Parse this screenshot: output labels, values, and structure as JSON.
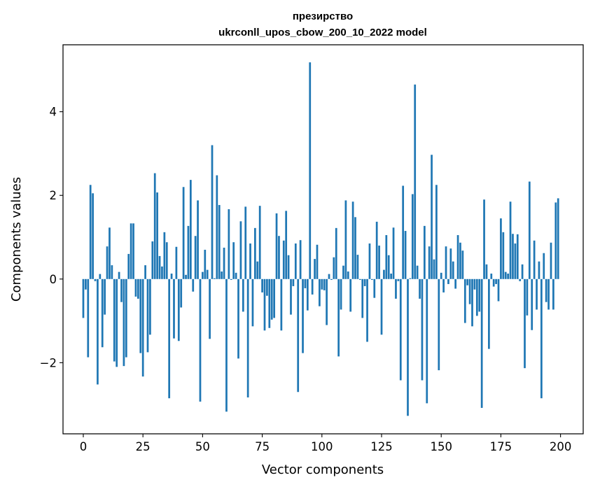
{
  "chart_data": {
    "type": "bar",
    "title": "презирство",
    "subtitle": "ukrconll_upos_cbow_200_10_2022 model",
    "xlabel": "Vector components",
    "ylabel": "Components values",
    "xlim": [
      -8.5,
      209.5
    ],
    "ylim": [
      -3.7,
      5.6
    ],
    "xticks": [
      0,
      25,
      50,
      75,
      100,
      125,
      150,
      175,
      200
    ],
    "xtick_labels": [
      "0",
      "25",
      "50",
      "75",
      "100",
      "125",
      "150",
      "175",
      "200"
    ],
    "yticks": [
      -2,
      0,
      2,
      4
    ],
    "ytick_labels": [
      "−2",
      "0",
      "2",
      "4"
    ],
    "grid": false,
    "bar_color": "#1f77b4",
    "x": [
      0,
      1,
      2,
      3,
      4,
      5,
      6,
      7,
      8,
      9,
      10,
      11,
      12,
      13,
      14,
      15,
      16,
      17,
      18,
      19,
      20,
      21,
      22,
      23,
      24,
      25,
      26,
      27,
      28,
      29,
      30,
      31,
      32,
      33,
      34,
      35,
      36,
      37,
      38,
      39,
      40,
      41,
      42,
      43,
      44,
      45,
      46,
      47,
      48,
      49,
      50,
      51,
      52,
      53,
      54,
      55,
      56,
      57,
      58,
      59,
      60,
      61,
      62,
      63,
      64,
      65,
      66,
      67,
      68,
      69,
      70,
      71,
      72,
      73,
      74,
      75,
      76,
      77,
      78,
      79,
      80,
      81,
      82,
      83,
      84,
      85,
      86,
      87,
      88,
      89,
      90,
      91,
      92,
      93,
      94,
      95,
      96,
      97,
      98,
      99,
      100,
      101,
      102,
      103,
      104,
      105,
      106,
      107,
      108,
      109,
      110,
      111,
      112,
      113,
      114,
      115,
      116,
      117,
      118,
      119,
      120,
      121,
      122,
      123,
      124,
      125,
      126,
      127,
      128,
      129,
      130,
      131,
      132,
      133,
      134,
      135,
      136,
      137,
      138,
      139,
      140,
      141,
      142,
      143,
      144,
      145,
      146,
      147,
      148,
      149,
      150,
      151,
      152,
      153,
      154,
      155,
      156,
      157,
      158,
      159,
      160,
      161,
      162,
      163,
      164,
      165,
      166,
      167,
      168,
      169,
      170,
      171,
      172,
      173,
      174,
      175,
      176,
      177,
      178,
      179,
      180,
      181,
      182,
      183,
      184,
      185,
      186,
      187,
      188,
      189,
      190,
      191,
      192,
      193,
      194,
      195,
      196,
      197,
      198,
      199
    ],
    "values": [
      -0.93,
      -0.25,
      -1.87,
      2.25,
      2.05,
      -0.05,
      -2.52,
      0.12,
      -1.63,
      -0.85,
      0.78,
      1.23,
      0.33,
      -1.97,
      -2.1,
      0.17,
      -0.55,
      -2.08,
      -1.87,
      0.6,
      1.33,
      1.33,
      -0.42,
      -0.47,
      -1.77,
      -2.33,
      0.33,
      -1.75,
      -1.33,
      0.9,
      2.53,
      2.07,
      0.55,
      0.3,
      1.12,
      0.88,
      -2.85,
      0.13,
      -1.42,
      0.77,
      -1.48,
      -0.68,
      2.2,
      0.1,
      1.27,
      2.37,
      -0.3,
      1.03,
      1.88,
      -2.93,
      0.17,
      0.7,
      0.22,
      -1.43,
      3.2,
      0.02,
      2.48,
      1.77,
      0.18,
      0.75,
      -3.17,
      1.67,
      -0.02,
      0.88,
      0.15,
      -1.9,
      1.38,
      -0.78,
      1.73,
      -2.83,
      0.85,
      -1.13,
      1.22,
      0.42,
      1.75,
      -0.32,
      -1.23,
      -0.4,
      -1.17,
      -0.97,
      -0.93,
      1.57,
      1.03,
      -1.23,
      0.92,
      1.63,
      0.57,
      -0.85,
      -0.17,
      0.85,
      -2.7,
      0.93,
      -1.77,
      -0.22,
      -0.75,
      5.18,
      -0.37,
      0.48,
      0.82,
      -0.65,
      -0.25,
      -0.27,
      -1.1,
      0.12,
      -0.02,
      0.52,
      1.22,
      -1.85,
      -0.73,
      0.32,
      1.88,
      0.18,
      -0.78,
      1.85,
      1.48,
      0.58,
      -0.02,
      -0.93,
      -0.17,
      -1.5,
      0.85,
      -0.02,
      -0.45,
      1.37,
      0.8,
      -1.33,
      0.22,
      1.05,
      0.57,
      0.13,
      1.23,
      -0.47,
      -0.05,
      -2.42,
      2.23,
      1.15,
      -3.27,
      0.02,
      2.03,
      4.65,
      0.32,
      -0.47,
      -2.42,
      1.27,
      -2.97,
      0.78,
      2.97,
      0.47,
      2.25,
      -2.18,
      0.15,
      -0.32,
      0.78,
      -0.12,
      0.73,
      0.42,
      -0.23,
      1.05,
      0.87,
      0.68,
      -1.05,
      -0.15,
      -0.6,
      -1.13,
      -0.25,
      -0.88,
      -0.78,
      -3.08,
      1.9,
      0.35,
      -1.67,
      0.13,
      -0.18,
      -0.12,
      -0.53,
      1.45,
      1.12,
      0.17,
      0.13,
      1.85,
      1.08,
      0.85,
      1.07,
      -0.05,
      0.35,
      -2.13,
      -0.87,
      2.33,
      -1.22,
      0.92,
      -0.73,
      0.42,
      -2.85,
      0.62,
      -0.55,
      -0.73,
      0.87,
      -0.73,
      1.83,
      1.93
    ]
  }
}
